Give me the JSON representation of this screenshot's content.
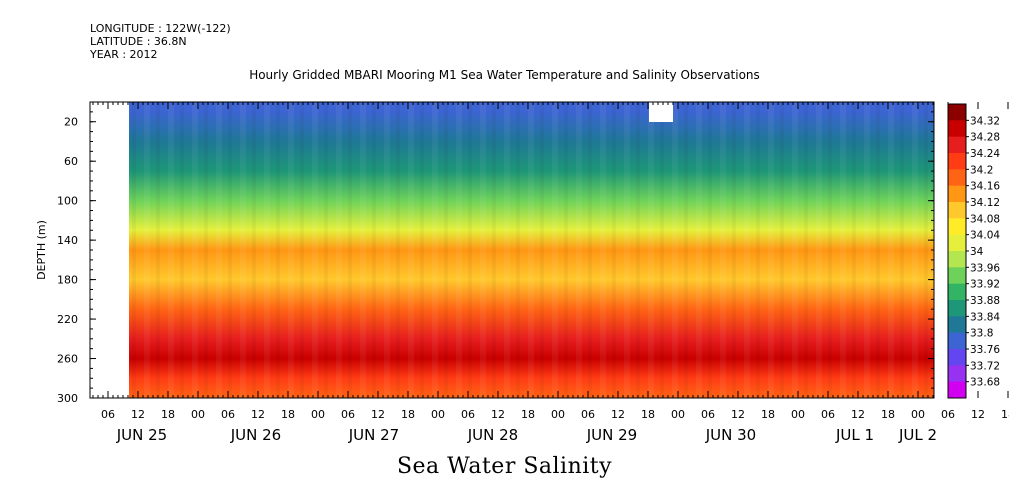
{
  "meta": {
    "longitude": "LONGITUDE : 122W(-122)",
    "latitude": "LATITUDE : 36.8N",
    "year": "YEAR : 2012"
  },
  "title": "Hourly Gridded MBARI Mooring M1 Sea Water Temperature and Salinity Observations",
  "footer": "Sea Water Salinity",
  "chart_data": {
    "type": "heatmap",
    "title": "Hourly Gridded MBARI Mooring M1 Sea Water Temperature and Salinity Observations",
    "variable": "Sea Water Salinity",
    "ylabel": "DEPTH (m)",
    "ylim": [
      300,
      0
    ],
    "y_ticks": [
      20,
      60,
      100,
      140,
      180,
      220,
      260,
      300
    ],
    "x_hour_ticks": [
      "06",
      "12",
      "18",
      "00",
      "06",
      "12",
      "18",
      "00",
      "06",
      "12",
      "18",
      "00",
      "06",
      "12",
      "18",
      "00",
      "06",
      "12",
      "18",
      "00",
      "06",
      "12",
      "18",
      "00",
      "06",
      "12",
      "18",
      "00",
      "06",
      "12",
      "18",
      "00"
    ],
    "x_day_labels": [
      "JUN 25",
      "JUN 26",
      "JUN 27",
      "JUN 28",
      "JUN 29",
      "JUN 30",
      "JUL 1",
      "JUL 2"
    ],
    "depth_profile": [
      {
        "depth": 10,
        "salinity": 33.77
      },
      {
        "depth": 40,
        "salinity": 33.8
      },
      {
        "depth": 70,
        "salinity": 33.85
      },
      {
        "depth": 100,
        "salinity": 33.93
      },
      {
        "depth": 130,
        "salinity": 34.02
      },
      {
        "depth": 150,
        "salinity": 34.12
      },
      {
        "depth": 180,
        "salinity": 34.11
      },
      {
        "depth": 210,
        "salinity": 34.17
      },
      {
        "depth": 240,
        "salinity": 34.26
      },
      {
        "depth": 260,
        "salinity": 34.28
      },
      {
        "depth": 280,
        "salinity": 34.22
      },
      {
        "depth": 300,
        "salinity": 34.18
      }
    ],
    "colorbar": {
      "levels": [
        "34.32",
        "34.28",
        "34.24",
        "34.2",
        "34.16",
        "34.12",
        "34.08",
        "34.04",
        "34",
        "33.96",
        "33.92",
        "33.88",
        "33.84",
        "33.8",
        "33.76",
        "33.72",
        "33.68"
      ],
      "colors": [
        "#8c0000",
        "#c80000",
        "#e61e1e",
        "#ff3c14",
        "#ff6414",
        "#ff9614",
        "#ffc82d",
        "#ffeb28",
        "#e6f03c",
        "#b4e650",
        "#6ed25a",
        "#32b464",
        "#1e9678",
        "#1e7896",
        "#3c64d2",
        "#6446f0",
        "#9632f0",
        "#d200f0"
      ]
    },
    "grid": false
  }
}
